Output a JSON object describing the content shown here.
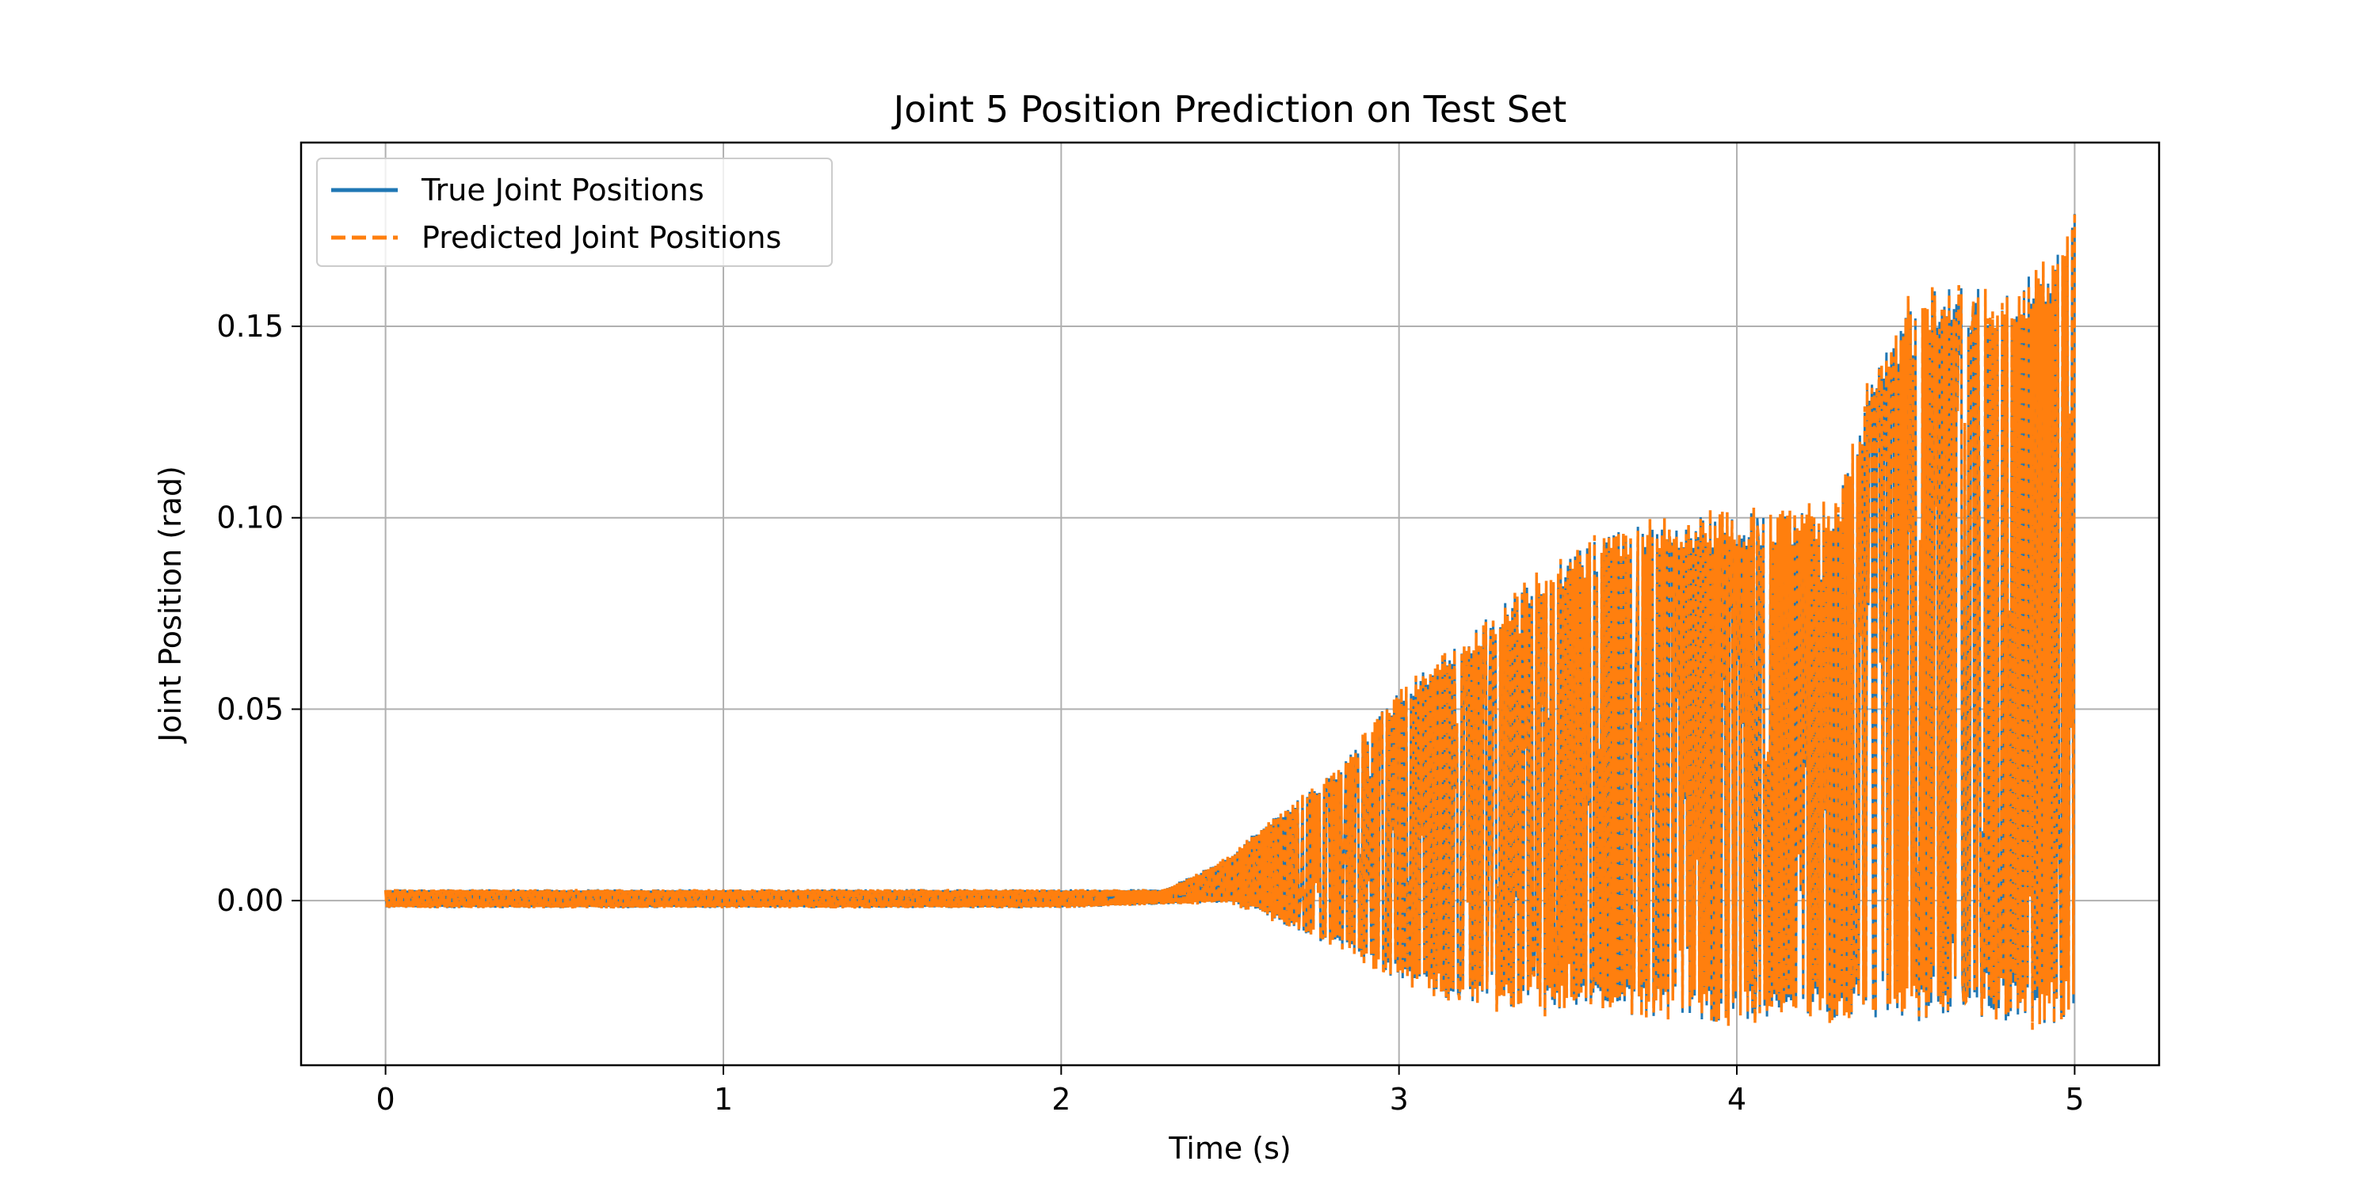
{
  "chart_data": {
    "type": "line",
    "title": "Joint 5 Position Prediction on Test Set",
    "xlabel": "Time (s)",
    "ylabel": "Joint Position (rad)",
    "xlim": [
      -0.25,
      5.25
    ],
    "ylim": [
      -0.043,
      0.198
    ],
    "x_ticks": [
      0,
      1,
      2,
      3,
      4,
      5
    ],
    "x_tick_labels": [
      "0",
      "1",
      "2",
      "3",
      "4",
      "5"
    ],
    "y_ticks": [
      0.0,
      0.05,
      0.1,
      0.15
    ],
    "y_tick_labels": [
      "0.00",
      "0.05",
      "0.10",
      "0.15"
    ],
    "grid": true,
    "legend_position": "top-left",
    "envelope": {
      "t": [
        0.0,
        0.5,
        1.0,
        1.5,
        2.0,
        2.3,
        2.4,
        2.5,
        2.6,
        2.8,
        3.0,
        3.2,
        3.4,
        3.6,
        3.8,
        4.0,
        4.2,
        4.3,
        4.4,
        4.5,
        4.6,
        4.7,
        4.8,
        4.9,
        4.95,
        5.0
      ],
      "upper": [
        0.003,
        0.003,
        0.003,
        0.003,
        0.003,
        0.003,
        0.007,
        0.012,
        0.02,
        0.033,
        0.055,
        0.07,
        0.085,
        0.095,
        0.1,
        0.101,
        0.102,
        0.104,
        0.14,
        0.16,
        0.16,
        0.16,
        0.16,
        0.165,
        0.175,
        0.186
      ],
      "lower": [
        -0.002,
        -0.002,
        -0.002,
        -0.002,
        -0.002,
        -0.001,
        -0.001,
        -0.001,
        -0.004,
        -0.012,
        -0.022,
        -0.027,
        -0.029,
        -0.03,
        -0.031,
        -0.032,
        -0.032,
        -0.032,
        -0.032,
        -0.032,
        -0.032,
        -0.032,
        -0.032,
        -0.032,
        -0.032,
        -0.032
      ]
    },
    "series": [
      {
        "name": "True Joint Positions",
        "color": "#1f77b4",
        "style": "solid"
      },
      {
        "name": "Predicted Joint Positions",
        "color": "#ff7f0e",
        "style": "dashed"
      }
    ]
  }
}
